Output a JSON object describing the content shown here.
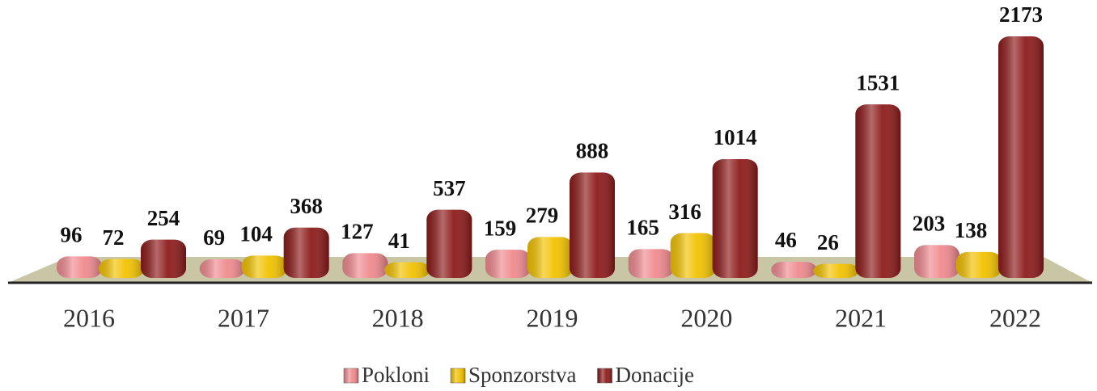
{
  "chart_data": {
    "type": "bar3d",
    "categories": [
      "2016",
      "2017",
      "2018",
      "2019",
      "2020",
      "2021",
      "2022"
    ],
    "series": [
      {
        "name": "Pokloni",
        "color": "#f08a8f",
        "values": [
          96,
          69,
          127,
          159,
          165,
          46,
          203
        ]
      },
      {
        "name": "Sponzorstva",
        "color": "#f2c200",
        "values": [
          72,
          104,
          41,
          279,
          316,
          26,
          138
        ]
      },
      {
        "name": "Donacije",
        "color": "#8e1b1b",
        "values": [
          254,
          368,
          537,
          888,
          1014,
          1531,
          2173
        ]
      }
    ],
    "legend": "bottom"
  }
}
